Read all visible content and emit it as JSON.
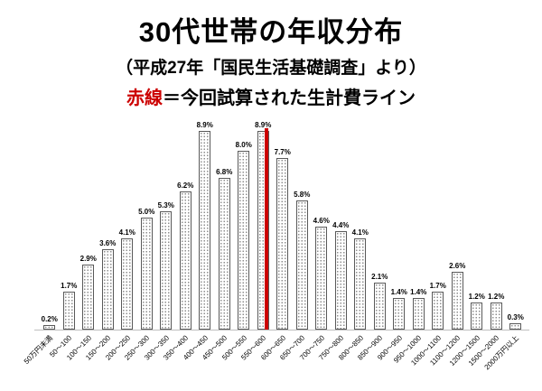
{
  "title": "30代世帯の年収分布",
  "subtitle": "（平成27年「国民生活基礎調査」より）",
  "legend": {
    "red_text": "赤線",
    "rest_text": "＝今回試算された生計費ライン"
  },
  "colors": {
    "red": "#cc0000",
    "text": "#000000",
    "bar_fill": "#ffffff",
    "bar_dot": "#8f8f8f",
    "bar_border": "#595959",
    "axis": "#bfbfbf"
  },
  "chart_data": {
    "type": "bar",
    "title": "30代世帯の年収分布",
    "subtitle": "（平成27年「国民生活基礎調査」より）",
    "categories": [
      "50万円未満",
      "50～100",
      "100～150",
      "150～200",
      "200～250",
      "250～300",
      "300～350",
      "350～400",
      "400～450",
      "450～500",
      "500～550",
      "550～600",
      "600～650",
      "650～700",
      "700～750",
      "750～800",
      "800～850",
      "850～900",
      "900～950",
      "950～1000",
      "1000～1100",
      "1100～1200",
      "1200～1500",
      "1500～2000",
      "2000万円以上"
    ],
    "values": [
      0.2,
      1.7,
      2.9,
      3.6,
      4.1,
      5.0,
      5.3,
      6.2,
      8.9,
      6.8,
      8.0,
      8.9,
      7.7,
      5.8,
      4.6,
      4.4,
      4.1,
      2.1,
      1.4,
      1.4,
      1.7,
      2.6,
      1.2,
      1.2,
      0.3
    ],
    "value_labels": [
      "0.2%",
      "1.7%",
      "2.9%",
      "3.6%",
      "4.1%",
      "5.0%",
      "5.3%",
      "6.2%",
      "8.9%",
      "6.8%",
      "8.0%",
      "8.9%",
      "7.7%",
      "5.8%",
      "4.6%",
      "4.4%",
      "4.1%",
      "2.1%",
      "1.4%",
      "1.4%",
      "1.7%",
      "2.6%",
      "1.2%",
      "1.2%",
      "0.3%"
    ],
    "xlabel": "",
    "ylabel": "",
    "ylim": [
      0,
      9.5
    ],
    "grid": false,
    "legend_position": "none",
    "red_line": {
      "label": "今回試算された生計費ライン",
      "between_categories": [
        "550～600",
        "600～650"
      ],
      "slot_position": 11.6
    }
  }
}
